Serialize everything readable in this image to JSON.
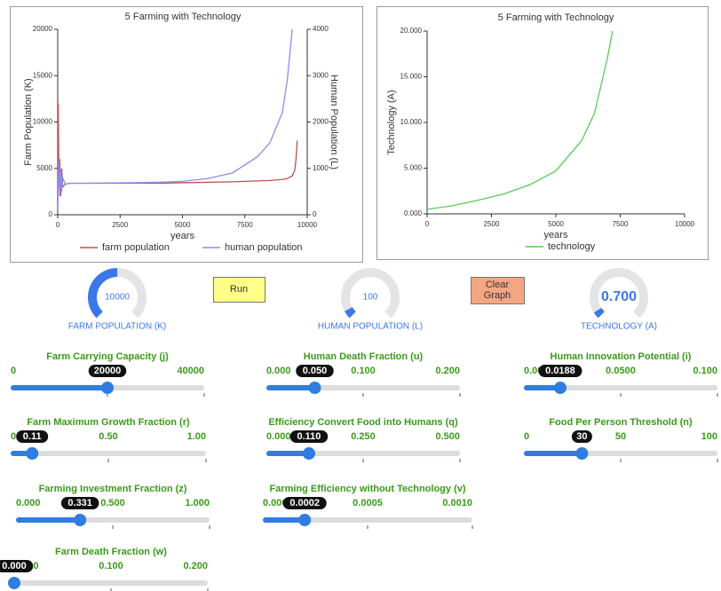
{
  "chart_data": [
    {
      "type": "line",
      "title": "5 Farming with Technology",
      "x_label": "years",
      "y_label": "Farm Population (K)",
      "y2_label": "Human Population (L)",
      "x": [
        0,
        20,
        50,
        80,
        120,
        160,
        200,
        300,
        500,
        1000,
        2000,
        3000,
        4000,
        5000,
        6000,
        7000,
        8000,
        8500,
        9000,
        9200,
        9400,
        9500,
        9550,
        9600
      ],
      "series": [
        {
          "name": "farm population",
          "color": "#c0504d",
          "values": [
            1000,
            12000,
            3000,
            6000,
            2000,
            5000,
            3000,
            3300,
            3400,
            3400,
            3400,
            3400,
            3400,
            3450,
            3500,
            3550,
            3650,
            3700,
            3800,
            3900,
            4200,
            4800,
            6000,
            8000
          ]
        },
        {
          "name": "human population",
          "color": "#8c8cf0",
          "axis": "y2",
          "values": [
            100,
            600,
            1200,
            400,
            1000,
            500,
            800,
            660,
            680,
            680,
            685,
            690,
            700,
            720,
            780,
            900,
            1250,
            1550,
            2200,
            2900,
            4000,
            null,
            null,
            null
          ]
        }
      ],
      "xlim": [
        0,
        10000
      ],
      "xticks": [
        0,
        2500,
        5000,
        7500,
        10000
      ],
      "ylim": [
        0,
        20000
      ],
      "yticks": [
        0,
        5000,
        10000,
        15000,
        20000
      ],
      "y2lim": [
        0,
        4000
      ],
      "y2ticks": [
        0,
        1000,
        2000,
        3000,
        4000
      ],
      "legend": "bottom"
    },
    {
      "type": "line",
      "title": "5 Farming with Technology",
      "x_label": "years",
      "y_label": "Technology (A)",
      "x": [
        0,
        1000,
        2000,
        3000,
        4000,
        5000,
        6000,
        6500,
        7000,
        7200
      ],
      "series": [
        {
          "name": "technology",
          "color": "#5cc85c",
          "values": [
            0.5,
            0.9,
            1.5,
            2.2,
            3.2,
            4.7,
            8,
            11,
            17,
            20
          ]
        }
      ],
      "xlim": [
        0,
        10000
      ],
      "xticks": [
        0,
        2500,
        5000,
        7500,
        10000
      ],
      "ylim": [
        0,
        20
      ],
      "yticks": [
        {
          "value": 0,
          "label": "0.000"
        },
        {
          "value": 5,
          "label": "5.000"
        },
        {
          "value": 10,
          "label": "10.000"
        },
        {
          "value": 15,
          "label": "15.000"
        },
        {
          "value": 20,
          "label": "20.000"
        }
      ],
      "legend": "bottom"
    }
  ],
  "gauges": [
    {
      "label": "FARM POPULATION (K)",
      "value": "10000"
    },
    {
      "label": "HUMAN POPULATION (L)",
      "value": "100"
    },
    {
      "label": "TECHNOLOGY (A)",
      "value": "0.700"
    }
  ],
  "buttons": [
    {
      "label": "Run"
    },
    {
      "label": "Clear Graph"
    }
  ],
  "sliders": [
    {
      "label": "Farm Carrying Capacity (j)",
      "min": "0",
      "max": "40000",
      "value": "20000"
    },
    {
      "label": "Farm Maximum Growth Fraction (r)",
      "min": "0.00",
      "mid": "0.50",
      "max": "1.00",
      "value": "0.11"
    },
    {
      "label": "Farming Investment Fraction (z)",
      "min": "0.000",
      "mid": "0.500",
      "max": "1.000",
      "value": "0.331"
    },
    {
      "label": "Farm Death Fraction (w)",
      "min": "0.000",
      "mid": "0.100",
      "max": "0.200",
      "value": "0.000"
    },
    {
      "label": "Human Death Fraction (u)",
      "min": "0.000",
      "mid": "0.100",
      "max": "0.200",
      "value": "0.050"
    },
    {
      "label": "Efficiency Convert Food into Humans (q)",
      "min": "0.000",
      "mid": "0.250",
      "max": "0.500",
      "value": "0.110"
    },
    {
      "label": "Farming Efficiency without Technology (v)",
      "min": "0.0000",
      "mid": "0.0005",
      "max": "0.0010",
      "value": "0.0002"
    },
    {
      "label": "Human Innovation Potential (i)",
      "min": "0.0000",
      "mid": "0.0500",
      "max": "0.100",
      "value": "0.0188"
    },
    {
      "label": "Food Per Person Threshold (n)",
      "min": "0",
      "mid": "50",
      "max": "100",
      "value": "30"
    }
  ]
}
